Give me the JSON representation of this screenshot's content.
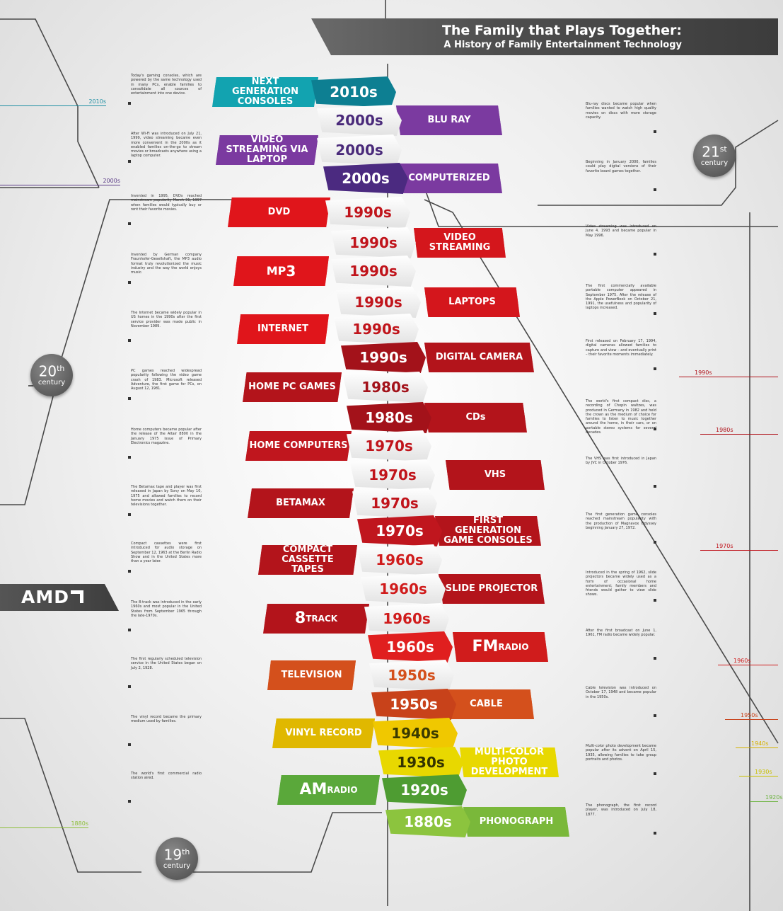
{
  "header": {
    "title": "The Family that Plays Together:",
    "subtitle": "A History of Family Entertainment Technology"
  },
  "brand": {
    "name": "AMD"
  },
  "centuries": [
    {
      "num": "21",
      "sup": "st",
      "word": "century"
    },
    {
      "num": "20",
      "sup": "th",
      "word": "century"
    },
    {
      "num": "19",
      "sup": "th",
      "word": "century"
    }
  ],
  "markers": [
    {
      "text": "2010s",
      "color": "#1f8fa3"
    },
    {
      "text": "2000s",
      "color": "#5a3a86"
    },
    {
      "text": "1990s",
      "color": "#b0131b"
    },
    {
      "text": "1980s",
      "color": "#b0131b"
    },
    {
      "text": "1970s",
      "color": "#c0161e"
    },
    {
      "text": "1960s",
      "color": "#d01c1c"
    },
    {
      "text": "1950s",
      "color": "#c8421a"
    },
    {
      "text": "1940s",
      "color": "#d5b100"
    },
    {
      "text": "1930s",
      "color": "#c9c000"
    },
    {
      "text": "1920s",
      "color": "#6cb33f"
    },
    {
      "text": "1880s",
      "color": "#8dbf3a"
    }
  ],
  "entries": [
    {
      "decade": "2010s",
      "label": "NEXT GENERATION CONSOLES",
      "side": "left",
      "color": "#12a3b0",
      "deccolor": "#0d7f92",
      "dectext": "#ffffff",
      "text": "Today's gaming consoles, which are powered by the same technology used in many PCs, enable families to consolidate all sources of entertainment into one device."
    },
    {
      "decade": "2000s",
      "label": "BLU RAY",
      "side": "right",
      "color": "#7b3aa0",
      "deccolor": "white",
      "dectext": "#4a2a7a",
      "text": "Blu-ray discs became popular when families wanted to watch high quality movies on discs with more storage capacity."
    },
    {
      "decade": "2000s",
      "label": "VIDEO STREAMING VIA LAPTOP",
      "side": "left",
      "color": "#7b3aa0",
      "deccolor": "white",
      "dectext": "#4a2a7a",
      "text": "After Wi-Fi was introduced on July 21, 1999, video streaming became even more convenient in the 2000s as it enabled families on-the-go to stream movies or broadcasts anywhere using a laptop computer."
    },
    {
      "decade": "2000s",
      "label": "COMPUTERIZED",
      "side": "right",
      "color": "#7b3aa0",
      "deccolor": "#4b2a80",
      "dectext": "#ffffff",
      "text": "Beginning in January 2000, families could play digital versions of their favorite board games together."
    },
    {
      "decade": "1990s",
      "label": "DVD",
      "side": "left",
      "color": "#e0151b",
      "deccolor": "white",
      "dectext": "#c0141b",
      "text": "Invented in 1995, DVDs reached mainstream popularity March 31, 1997 when families would typically buy or rent their favorite movies."
    },
    {
      "decade": "1990s",
      "label": "VIDEO STREAMING",
      "side": "right",
      "color": "#d4161c",
      "deccolor": "white",
      "dectext": "#c0141b",
      "text": "Video streaming was introduced on June 4, 1993 and became popular in May 1996."
    },
    {
      "decade": "1990s",
      "label": "MP3",
      "side": "left",
      "color": "#e0151b",
      "deccolor": "white",
      "dectext": "#c0141b",
      "text": "Invented by German company Fraunhofer-Gesellshaft, the MP3 audio format truly revolutionized the music industry and the way the world enjoys music."
    },
    {
      "decade": "1990s",
      "label": "LAPTOPS",
      "side": "right",
      "color": "#d4161c",
      "deccolor": "white",
      "dectext": "#c0141b",
      "text": "The first commercially available portable computer appeared in September 1975. After the release of the Apple PowerBook on October 21, 1991, the usefulness and popularity of laptops increased."
    },
    {
      "decade": "1990s",
      "label": "INTERNET",
      "side": "left",
      "color": "#e0151b",
      "deccolor": "white",
      "dectext": "#c0141b",
      "text": "The Internet became widely popular in US homes in the 1990s after the first service provider was made public in November 1989."
    },
    {
      "decade": "1990s",
      "label": "DIGITAL CAMERA",
      "side": "right",
      "color": "#b3141b",
      "deccolor": "#a3121a",
      "dectext": "#ffffff",
      "text": "First released on February 17, 1994, digital cameras allowed families to capture and view – and eventually print – their favorite moments immediately."
    },
    {
      "decade": "1980s",
      "label": "HOME PC GAMES",
      "side": "left",
      "color": "#b3141b",
      "deccolor": "white",
      "dectext": "#a3121a",
      "text": "PC games reached widespread popularity following the video game crash of 1983. Microsoft released Adventure, the first game for PCs, on August 12, 1981."
    },
    {
      "decade": "1980s",
      "label": "CDs",
      "side": "right",
      "color": "#b3141b",
      "deccolor": "#a3121a",
      "dectext": "#ffffff",
      "text": "The world's first compact disc, a recording of Chopin waltzes, was produced in Germany in 1982 and held the crown as the medium of choice for families to listen to music together around the home, in their cars, or on portable stereo systems for several decades."
    },
    {
      "decade": "1970s",
      "label": "HOME COMPUTERS",
      "side": "left",
      "color": "#c0161e",
      "deccolor": "white",
      "dectext": "#c0141b",
      "text": "Home computers became popular after the release of the Altair 8800 in the January 1975 issue of Primary Electronics magazine."
    },
    {
      "decade": "1970s",
      "label": "VHS",
      "side": "right",
      "color": "#b3141b",
      "deccolor": "white",
      "dectext": "#c0141b",
      "text": "The VHS was first introduced in Japan by JVC in October 1976."
    },
    {
      "decade": "1970s",
      "label": "BETAMAX",
      "side": "left",
      "color": "#b3141b",
      "deccolor": "white",
      "dectext": "#c0141b",
      "text": "The Betamax tape and player was first released in Japan by Sony on May 10, 1975 and allowed families to record home movies and watch them on their televisions together."
    },
    {
      "decade": "1970s",
      "label": "FIRST GENERATION GAME CONSOLES",
      "side": "right",
      "color": "#b3141b",
      "deccolor": "#c0161e",
      "dectext": "#ffffff",
      "text": "The first generation game consoles reached mainstream popularity with the production of Magnavox Odyssey beginning January 27, 1972."
    },
    {
      "decade": "1960s",
      "label": "COMPACT CASSETTE TAPES",
      "side": "left",
      "color": "#b3141b",
      "deccolor": "white",
      "dectext": "#d01c1c",
      "text": "Compact cassettes were first introduced for audio storage on September 12, 1963 at the Berlin Radio Show and in the United States more than a year later."
    },
    {
      "decade": "1960s",
      "label": "SLIDE PROJECTOR",
      "side": "right",
      "color": "#b3141b",
      "deccolor": "white",
      "dectext": "#d01c1c",
      "text": "Introduced in the spring of 1962, slide projectors became widely used as a form of occasional home entertainment; family members and friends would gather to view slide shows."
    },
    {
      "decade": "1960s",
      "label": "8 TRACK",
      "side": "left",
      "color": "#b3141b",
      "deccolor": "white",
      "dectext": "#d01c1c",
      "text": "The 8-track was introduced in the early 1960s and most popular in the United States from September 1965 through the late-1970s."
    },
    {
      "decade": "1960s",
      "label": "FM RADIO",
      "side": "right",
      "color": "#d01c1c",
      "deccolor": "#e01f1f",
      "dectext": "#ffffff",
      "text": "After the first broadcast on June 1, 1961, FM radio became widely popular."
    },
    {
      "decade": "1950s",
      "label": "TELEVISION",
      "side": "left",
      "color": "#d4501c",
      "deccolor": "white",
      "dectext": "#d4501c",
      "text": "The first regularly scheduled television service in the United States began on July 2, 1928."
    },
    {
      "decade": "1950s",
      "label": "CABLE",
      "side": "right",
      "color": "#d4501c",
      "deccolor": "#c8421a",
      "dectext": "#ffffff",
      "text": "Cable television was introduced on October 17, 1948 and became popular in the 1950s."
    },
    {
      "decade": "1940s",
      "label": "VINYL RECORD",
      "side": "left",
      "color": "#e0b800",
      "deccolor": "#f0c800",
      "dectext": "#3a3a00",
      "text": "The vinyl record became the primary medium used by families."
    },
    {
      "decade": "1930s",
      "label": "MULTI-COLOR PHOTO DEVELOPMENT",
      "side": "right",
      "color": "#e8d800",
      "deccolor": "#e8d800",
      "dectext": "#333300",
      "text": "Multi-color photo development became popular after its advent on April 15, 1935, allowing families to take group portraits and photos."
    },
    {
      "decade": "1920s",
      "label": "AM RADIO",
      "side": "left",
      "color": "#5aa83a",
      "deccolor": "#4e9c32",
      "dectext": "#ffffff",
      "text": "The world's first commercial radio station aired."
    },
    {
      "decade": "1880s",
      "label": "PHONOGRAPH",
      "side": "right",
      "color": "#7ab83a",
      "deccolor": "#8cc43e",
      "dectext": "#ffffff",
      "text": "The phonograph, the first record player, was introduced on July 18, 1877."
    }
  ]
}
